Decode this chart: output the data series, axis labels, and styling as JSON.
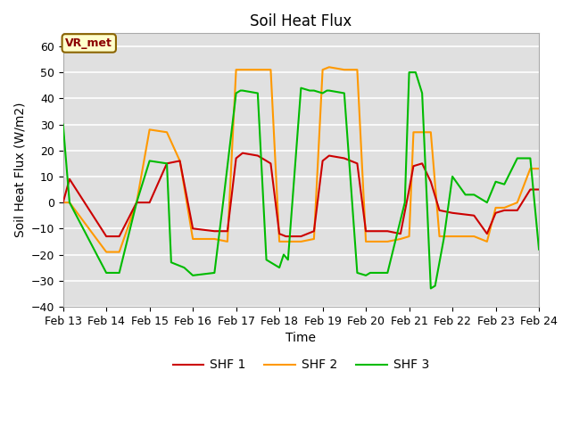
{
  "title": "Soil Heat Flux",
  "xlabel": "Time",
  "ylabel": "Soil Heat Flux (W/m2)",
  "ylim": [
    -40,
    65
  ],
  "yticks": [
    -40,
    -30,
    -20,
    -10,
    0,
    10,
    20,
    30,
    40,
    50,
    60
  ],
  "background_color": "#e0e0e0",
  "annotation_text": "VR_met",
  "annotation_box_facecolor": "#ffffcc",
  "annotation_border_color": "#8B6400",
  "annotation_text_color": "#8B0000",
  "x_labels": [
    "Feb 13",
    "Feb 14",
    "Feb 15",
    "Feb 16",
    "Feb 17",
    "Feb 18",
    "Feb 19",
    "Feb 20",
    "Feb 21",
    "Feb 22",
    "Feb 23",
    "Feb 24"
  ],
  "legend_labels": [
    "SHF 1",
    "SHF 2",
    "SHF 3"
  ],
  "line_colors": [
    "#cc0000",
    "#ff9900",
    "#00bb00"
  ],
  "line_width": 1.5,
  "shf1_x": [
    0.0,
    0.15,
    1.0,
    1.3,
    1.7,
    2.0,
    2.4,
    2.7,
    3.0,
    3.5,
    3.8,
    4.0,
    4.15,
    4.5,
    4.8,
    5.0,
    5.15,
    5.5,
    5.8,
    6.0,
    6.15,
    6.5,
    6.8,
    7.0,
    7.5,
    7.8,
    8.0,
    8.1,
    8.3,
    8.5,
    8.7,
    9.0,
    9.5,
    9.8,
    10.0,
    10.2,
    10.5,
    10.8,
    11.0
  ],
  "shf1_y": [
    0,
    9,
    -13,
    -13,
    0,
    0,
    15,
    16,
    -10,
    -11,
    -11,
    17,
    19,
    18,
    15,
    -12,
    -13,
    -13,
    -11,
    16,
    18,
    17,
    15,
    -11,
    -11,
    -12,
    5,
    14,
    15,
    8,
    -3,
    -4,
    -5,
    -12,
    -4,
    -3,
    -3,
    5,
    5
  ],
  "shf2_x": [
    0.0,
    0.15,
    1.0,
    1.3,
    1.7,
    2.0,
    2.4,
    2.7,
    3.0,
    3.5,
    3.8,
    4.0,
    4.15,
    4.5,
    4.8,
    5.0,
    5.15,
    5.5,
    5.8,
    6.0,
    6.15,
    6.5,
    6.8,
    7.0,
    7.5,
    7.8,
    8.0,
    8.1,
    8.3,
    8.5,
    8.7,
    9.0,
    9.5,
    9.8,
    10.0,
    10.2,
    10.5,
    10.8,
    11.0
  ],
  "shf2_y": [
    0,
    0,
    -19,
    -19,
    0,
    28,
    27,
    16,
    -14,
    -14,
    -15,
    51,
    51,
    51,
    51,
    -15,
    -15,
    -15,
    -14,
    51,
    52,
    51,
    51,
    -15,
    -15,
    -14,
    -13,
    27,
    27,
    27,
    -13,
    -13,
    -13,
    -15,
    -2,
    -2,
    0,
    13,
    13
  ],
  "shf3_x": [
    0.0,
    0.1,
    0.15,
    1.0,
    1.3,
    1.7,
    2.0,
    2.4,
    2.5,
    2.8,
    3.0,
    3.5,
    3.7,
    4.0,
    4.1,
    4.15,
    4.5,
    4.7,
    4.8,
    5.0,
    5.1,
    5.2,
    5.5,
    5.7,
    5.8,
    6.0,
    6.1,
    6.15,
    6.5,
    6.8,
    7.0,
    7.1,
    7.5,
    7.9,
    8.0,
    8.15,
    8.3,
    8.5,
    8.6,
    8.8,
    9.0,
    9.3,
    9.5,
    9.8,
    10.0,
    10.2,
    10.5,
    10.8,
    11.0
  ],
  "shf3_y": [
    30,
    10,
    0,
    -27,
    -27,
    0,
    16,
    15,
    -23,
    -25,
    -28,
    -27,
    0,
    42,
    43,
    43,
    42,
    -22,
    -23,
    -25,
    -20,
    -22,
    44,
    43,
    43,
    42,
    43,
    43,
    42,
    -27,
    -28,
    -27,
    -27,
    0,
    50,
    50,
    42,
    -33,
    -32,
    -14,
    10,
    3,
    3,
    0,
    8,
    7,
    17,
    17,
    -18
  ]
}
